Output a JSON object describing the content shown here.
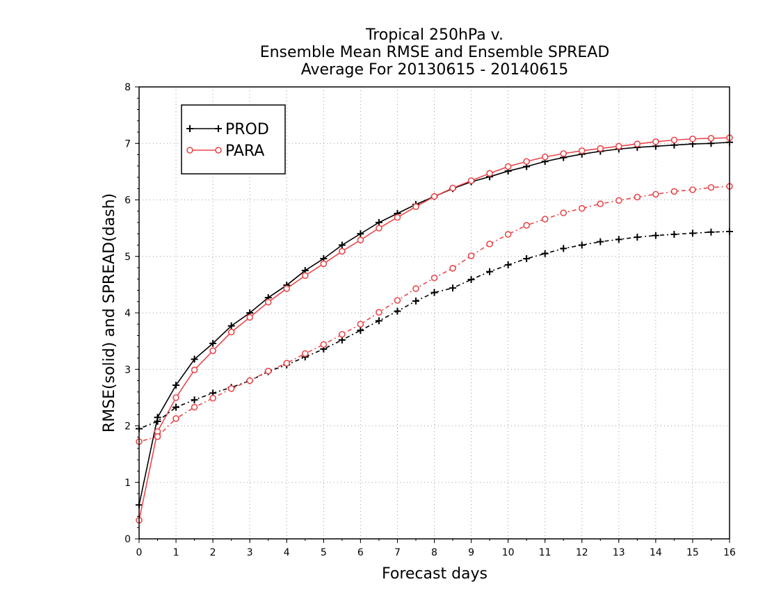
{
  "chart_data": {
    "type": "line",
    "title_lines": [
      "Tropical 250hPa v.",
      "Ensemble Mean RMSE and Ensemble SPREAD",
      "Average For 20130615 - 20140615"
    ],
    "xlabel": "Forecast days",
    "ylabel": "RMSE(solid) and SPREAD(dash)",
    "xlim": [
      0,
      16
    ],
    "ylim": [
      0,
      8
    ],
    "xticks": [
      "0",
      "1",
      "2",
      "3",
      "4",
      "5",
      "6",
      "7",
      "8",
      "9",
      "10",
      "11",
      "12",
      "13",
      "14",
      "15",
      "16"
    ],
    "yticks": [
      "0",
      "1",
      "2",
      "3",
      "4",
      "5",
      "6",
      "7",
      "8"
    ],
    "grid": true,
    "legend_position": "top-left",
    "x": [
      0,
      0.5,
      1,
      1.5,
      2,
      2.5,
      3,
      3.5,
      4,
      4.5,
      5,
      5.5,
      6,
      6.5,
      7,
      7.5,
      8,
      8.5,
      9,
      9.5,
      10,
      10.5,
      11,
      11.5,
      12,
      12.5,
      13,
      13.5,
      14,
      14.5,
      15,
      15.5,
      16
    ],
    "series": [
      {
        "name": "PROD",
        "metric": "RMSE",
        "line_style": "solid",
        "color": "#000000",
        "marker": "plus",
        "values": [
          0.6,
          2.15,
          2.72,
          3.18,
          3.46,
          3.77,
          4.0,
          4.27,
          4.49,
          4.75,
          4.96,
          5.2,
          5.4,
          5.6,
          5.76,
          5.92,
          6.06,
          6.2,
          6.32,
          6.41,
          6.51,
          6.59,
          6.68,
          6.75,
          6.81,
          6.86,
          6.9,
          6.93,
          6.95,
          6.97,
          6.99,
          7.0,
          7.02
        ]
      },
      {
        "name": "PARA",
        "metric": "RMSE",
        "line_style": "solid",
        "color": "#e8474b",
        "marker": "circle",
        "values": [
          0.33,
          1.9,
          2.5,
          2.99,
          3.33,
          3.66,
          3.92,
          4.19,
          4.43,
          4.66,
          4.87,
          5.09,
          5.29,
          5.5,
          5.69,
          5.88,
          6.06,
          6.21,
          6.34,
          6.47,
          6.59,
          6.68,
          6.76,
          6.82,
          6.87,
          6.91,
          6.95,
          6.99,
          7.03,
          7.06,
          7.08,
          7.09,
          7.1
        ]
      },
      {
        "name": "PROD",
        "metric": "SPREAD",
        "line_style": "dash",
        "color": "#000000",
        "marker": "plus",
        "values": [
          1.95,
          2.08,
          2.33,
          2.46,
          2.58,
          2.68,
          2.8,
          2.96,
          3.08,
          3.22,
          3.36,
          3.52,
          3.69,
          3.86,
          4.03,
          4.21,
          4.36,
          4.44,
          4.59,
          4.73,
          4.85,
          4.96,
          5.05,
          5.14,
          5.2,
          5.26,
          5.3,
          5.34,
          5.37,
          5.39,
          5.41,
          5.43,
          5.44
        ]
      },
      {
        "name": "PARA",
        "metric": "SPREAD",
        "line_style": "dash",
        "color": "#e8474b",
        "marker": "circle",
        "values": [
          1.72,
          1.81,
          2.13,
          2.33,
          2.49,
          2.66,
          2.8,
          2.97,
          3.11,
          3.28,
          3.44,
          3.62,
          3.8,
          4.01,
          4.22,
          4.43,
          4.62,
          4.79,
          5.01,
          5.22,
          5.39,
          5.55,
          5.66,
          5.77,
          5.85,
          5.93,
          5.99,
          6.05,
          6.1,
          6.15,
          6.18,
          6.22,
          6.24
        ]
      }
    ],
    "legend": [
      {
        "label": "PROD",
        "color": "#000000",
        "marker": "plus"
      },
      {
        "label": "PARA",
        "color": "#e8474b",
        "marker": "circle"
      }
    ]
  }
}
